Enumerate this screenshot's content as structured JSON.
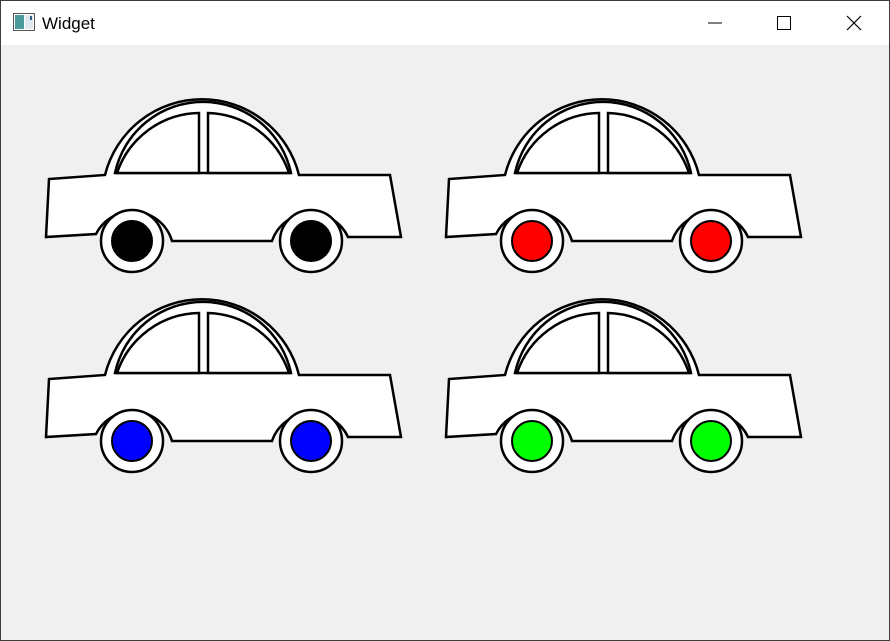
{
  "window": {
    "title": "Widget",
    "icon": "app-window-icon",
    "controls": [
      "minimize-icon",
      "maximize-icon",
      "close-icon"
    ]
  },
  "cars": [
    {
      "name": "car-1",
      "wheel_color": "#000000"
    },
    {
      "name": "car-2",
      "wheel_color": "#ff0000"
    },
    {
      "name": "car-3",
      "wheel_color": "#0000ff"
    },
    {
      "name": "car-4",
      "wheel_color": "#00ff00"
    }
  ],
  "colors": {
    "background": "#f0f0f0",
    "outline": "#000000",
    "body_fill": "#ffffff"
  }
}
